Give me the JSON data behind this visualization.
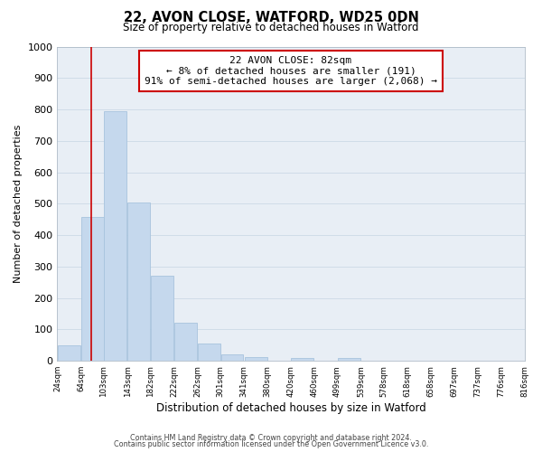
{
  "title": "22, AVON CLOSE, WATFORD, WD25 0DN",
  "subtitle": "Size of property relative to detached houses in Watford",
  "xlabel": "Distribution of detached houses by size in Watford",
  "ylabel": "Number of detached properties",
  "bar_left_edges": [
    24,
    64,
    103,
    143,
    182,
    222,
    262,
    301,
    341,
    380,
    420,
    460,
    499,
    539,
    578,
    618,
    658,
    697,
    737,
    776
  ],
  "bar_widths": [
    39,
    39,
    39,
    39,
    39,
    39,
    39,
    39,
    39,
    39,
    39,
    39,
    39,
    39,
    39,
    39,
    39,
    39,
    39,
    39
  ],
  "bar_heights": [
    50,
    458,
    793,
    503,
    272,
    122,
    54,
    22,
    13,
    0,
    10,
    0,
    8,
    0,
    0,
    0,
    0,
    0,
    0,
    0
  ],
  "bar_color": "#c5d8ed",
  "bar_edge_color": "#a8c4de",
  "grid_color": "#d0dce8",
  "bg_color": "#e8eef5",
  "vline_x": 82,
  "vline_color": "#cc0000",
  "annotation_title": "22 AVON CLOSE: 82sqm",
  "annotation_line1": "← 8% of detached houses are smaller (191)",
  "annotation_line2": "91% of semi-detached houses are larger (2,068) →",
  "annotation_box_color": "#ffffff",
  "annotation_box_edge": "#cc0000",
  "tick_labels": [
    "24sqm",
    "64sqm",
    "103sqm",
    "143sqm",
    "182sqm",
    "222sqm",
    "262sqm",
    "301sqm",
    "341sqm",
    "380sqm",
    "420sqm",
    "460sqm",
    "499sqm",
    "539sqm",
    "578sqm",
    "618sqm",
    "658sqm",
    "697sqm",
    "737sqm",
    "776sqm",
    "816sqm"
  ],
  "tick_positions": [
    24,
    64,
    103,
    143,
    182,
    222,
    262,
    301,
    341,
    380,
    420,
    460,
    499,
    539,
    578,
    618,
    658,
    697,
    737,
    776,
    816
  ],
  "ylim": [
    0,
    1000
  ],
  "yticks": [
    0,
    100,
    200,
    300,
    400,
    500,
    600,
    700,
    800,
    900,
    1000
  ],
  "xlim": [
    24,
    816
  ],
  "footer1": "Contains HM Land Registry data © Crown copyright and database right 2024.",
  "footer2": "Contains public sector information licensed under the Open Government Licence v3.0."
}
